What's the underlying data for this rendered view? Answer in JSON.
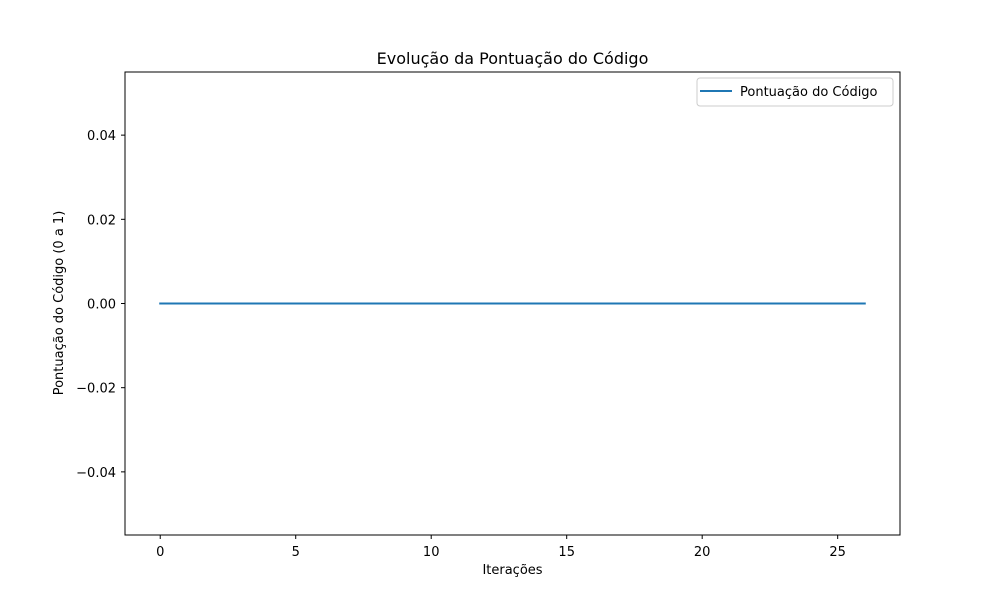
{
  "chart_data": {
    "type": "line",
    "title": "Evolução da Pontuação do Código",
    "xlabel": "Iterações",
    "ylabel": "Pontuação do Código (0 a 1)",
    "xlim": [
      -1.3,
      27.3
    ],
    "ylim": [
      -0.055,
      0.055
    ],
    "x_ticks": [
      0,
      5,
      10,
      15,
      20,
      25
    ],
    "x_tick_labels": [
      "0",
      "5",
      "10",
      "15",
      "20",
      "25"
    ],
    "y_ticks": [
      0.04,
      0.02,
      0.0,
      -0.02,
      -0.04
    ],
    "y_tick_labels": [
      "0.04",
      "0.02",
      "0.00",
      "−0.02",
      "−0.04"
    ],
    "grid": false,
    "legend_position": "top-right",
    "series": [
      {
        "name": "Pontuação do Código",
        "color": "#1f77b4",
        "x": [
          0,
          1,
          2,
          3,
          4,
          5,
          6,
          7,
          8,
          9,
          10,
          11,
          12,
          13,
          14,
          15,
          16,
          17,
          18,
          19,
          20,
          21,
          22,
          23,
          24,
          25,
          26
        ],
        "y": [
          0,
          0,
          0,
          0,
          0,
          0,
          0,
          0,
          0,
          0,
          0,
          0,
          0,
          0,
          0,
          0,
          0,
          0,
          0,
          0,
          0,
          0,
          0,
          0,
          0,
          0,
          0
        ]
      }
    ]
  }
}
